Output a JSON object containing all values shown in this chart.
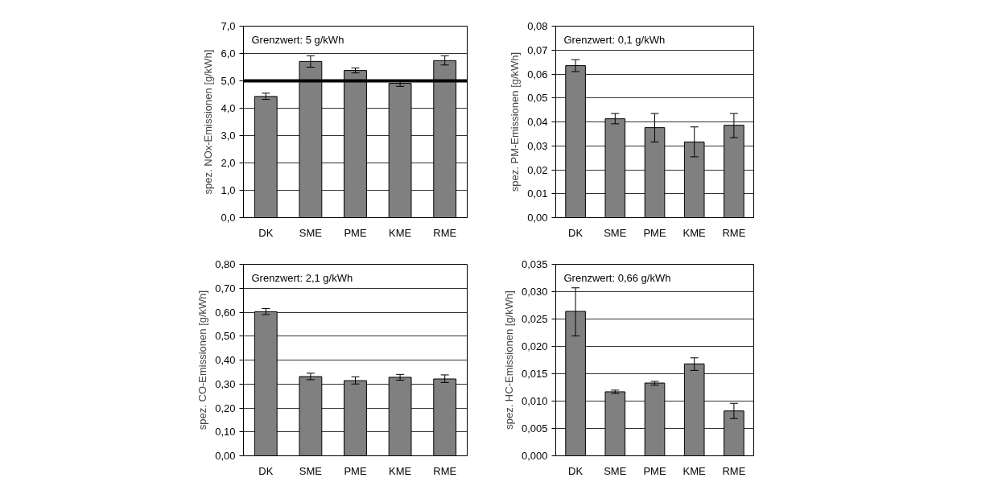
{
  "chart_data": [
    {
      "type": "bar",
      "categories": [
        "DK",
        "SME",
        "PME",
        "KME",
        "RME"
      ],
      "ylabel": "spez. NOx-Emissionen [g/kWh]",
      "annotations": [
        "Grenzwert: 5 g/kWh"
      ],
      "color": "#808080",
      "values": [
        4.43,
        5.71,
        5.38,
        4.91,
        5.74
      ],
      "errors": [
        [
          4.32,
          4.55
        ],
        [
          5.5,
          5.92
        ],
        [
          5.29,
          5.47
        ],
        [
          4.8,
          5.0
        ],
        [
          5.58,
          5.92
        ]
      ],
      "ylim": [
        0,
        7
      ],
      "yticks": [
        {
          "value": 0,
          "label": "0,0"
        },
        {
          "value": 1,
          "label": "1,0"
        },
        {
          "value": 2,
          "label": "2,0"
        },
        {
          "value": 3,
          "label": "3,0"
        },
        {
          "value": 4,
          "label": "4,0"
        },
        {
          "value": 5,
          "label": "5,0"
        },
        {
          "value": 6,
          "label": "6,0"
        },
        {
          "value": 7,
          "label": "7,0"
        }
      ],
      "ref_lines": [
        {
          "axis": "y",
          "value": 5,
          "label": null,
          "color": "#000000"
        }
      ],
      "grid": "y",
      "legend": false
    },
    {
      "type": "bar",
      "categories": [
        "DK",
        "SME",
        "PME",
        "KME",
        "RME"
      ],
      "ylabel": "spez. PM-Emissionen [g/kWh]",
      "annotations": [
        "Grenzwert: 0,1 g/kWh"
      ],
      "color": "#808080",
      "values": [
        0.0635,
        0.0413,
        0.0376,
        0.0316,
        0.0386
      ],
      "errors": [
        [
          0.061,
          0.066
        ],
        [
          0.0392,
          0.0435
        ],
        [
          0.0316,
          0.0435
        ],
        [
          0.0254,
          0.0379
        ],
        [
          0.0334,
          0.0435
        ]
      ],
      "ylim": [
        0,
        0.08
      ],
      "yticks": [
        {
          "value": 0,
          "label": "0,00"
        },
        {
          "value": 0.01,
          "label": "0,01"
        },
        {
          "value": 0.02,
          "label": "0,02"
        },
        {
          "value": 0.03,
          "label": "0,03"
        },
        {
          "value": 0.04,
          "label": "0,04"
        },
        {
          "value": 0.05,
          "label": "0,05"
        },
        {
          "value": 0.06,
          "label": "0,06"
        },
        {
          "value": 0.07,
          "label": "0,07"
        },
        {
          "value": 0.08,
          "label": "0,08"
        }
      ],
      "grid": "y",
      "legend": false
    },
    {
      "type": "bar",
      "categories": [
        "DK",
        "SME",
        "PME",
        "KME",
        "RME"
      ],
      "ylabel": "spez. CO-Emissionen [g/kWh]",
      "annotations": [
        "Grenzwert: 2,1 g/kWh"
      ],
      "color": "#808080",
      "values": [
        0.602,
        0.331,
        0.314,
        0.328,
        0.321
      ],
      "errors": [
        [
          0.59,
          0.615
        ],
        [
          0.318,
          0.345
        ],
        [
          0.3,
          0.33
        ],
        [
          0.316,
          0.34
        ],
        [
          0.306,
          0.338
        ]
      ],
      "ylim": [
        0,
        0.8
      ],
      "yticks": [
        {
          "value": 0,
          "label": "0,00"
        },
        {
          "value": 0.1,
          "label": "0,10"
        },
        {
          "value": 0.2,
          "label": "0,20"
        },
        {
          "value": 0.3,
          "label": "0,30"
        },
        {
          "value": 0.4,
          "label": "0,40"
        },
        {
          "value": 0.5,
          "label": "0,50"
        },
        {
          "value": 0.6,
          "label": "0,60"
        },
        {
          "value": 0.7,
          "label": "0,70"
        },
        {
          "value": 0.8,
          "label": "0,80"
        }
      ],
      "grid": "y",
      "legend": false
    },
    {
      "type": "bar",
      "categories": [
        "DK",
        "SME",
        "PME",
        "KME",
        "RME"
      ],
      "ylabel": "spez. HC-Emissionen [g/kWh]",
      "annotations": [
        "Grenzwert: 0,66 g/kWh"
      ],
      "color": "#808080",
      "values": [
        0.0264,
        0.0117,
        0.0133,
        0.0168,
        0.0082
      ],
      "errors": [
        [
          0.0219,
          0.0307
        ],
        [
          0.0114,
          0.012
        ],
        [
          0.0129,
          0.0136
        ],
        [
          0.0156,
          0.0179
        ],
        [
          0.0068,
          0.0096
        ]
      ],
      "ylim": [
        0,
        0.035
      ],
      "yticks": [
        {
          "value": 0,
          "label": "0,000"
        },
        {
          "value": 0.005,
          "label": "0,005"
        },
        {
          "value": 0.01,
          "label": "0,010"
        },
        {
          "value": 0.015,
          "label": "0,015"
        },
        {
          "value": 0.02,
          "label": "0,020"
        },
        {
          "value": 0.025,
          "label": "0,025"
        },
        {
          "value": 0.03,
          "label": "0,030"
        },
        {
          "value": 0.035,
          "label": "0,035"
        }
      ],
      "grid": "y",
      "legend": false
    }
  ]
}
